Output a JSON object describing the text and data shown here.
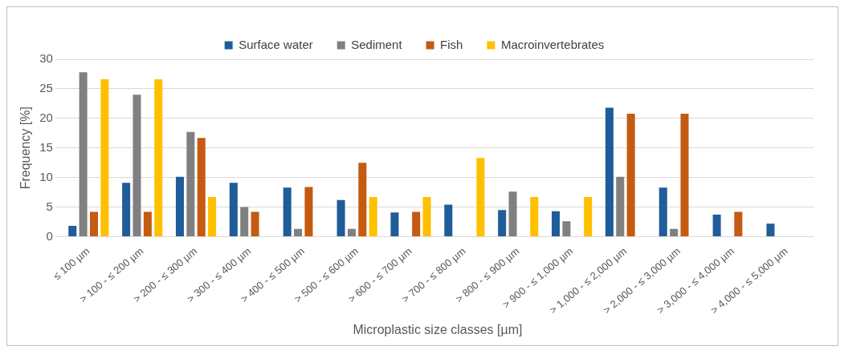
{
  "chart_data": {
    "type": "bar",
    "xlabel": "Microplastic size classes [µm]",
    "ylabel": "Frequency [%]",
    "categories": [
      "≤ 100 µm",
      "> 100 - ≤ 200 µm",
      "> 200 - ≤ 300 µm",
      "> 300 - ≤ 400 µm",
      "> 400 - ≤ 500 µm",
      "> 500 - ≤ 600 µm",
      "> 600 - ≤ 700 µm",
      "> 700 - ≤ 800 µm",
      "> 800 - ≤ 900 µm",
      "> 900 - ≤ 1,000 µm",
      "> 1,000 - ≤ 2,000 µm",
      "> 2,000 - ≤ 3,000 µm",
      "> 3,000 - ≤ 4,000 µm",
      "> 4,000 - ≤ 5,000 µm"
    ],
    "series": [
      {
        "name": "Surface water",
        "color": "#1f5c99",
        "values": [
          1.8,
          9.1,
          10.1,
          9.1,
          8.3,
          6.2,
          4.1,
          5.4,
          4.5,
          4.3,
          21.8,
          8.3,
          3.7,
          2.2
        ]
      },
      {
        "name": "Sediment",
        "color": "#808080",
        "values": [
          27.8,
          24,
          17.7,
          5,
          1.3,
          1.3,
          0,
          0,
          7.6,
          2.6,
          10.1,
          1.3,
          0,
          0
        ]
      },
      {
        "name": "Fish",
        "color": "#c55a11",
        "values": [
          4.2,
          4.2,
          16.7,
          4.2,
          8.4,
          12.5,
          4.2,
          0,
          0,
          0,
          20.8,
          20.8,
          4.2,
          0
        ]
      },
      {
        "name": "Macroinvertebrates",
        "color": "#ffc000",
        "values": [
          26.6,
          26.6,
          6.7,
          0,
          0,
          6.7,
          6.7,
          13.3,
          6.7,
          6.7,
          0,
          0,
          0,
          0
        ]
      }
    ],
    "ylim": [
      0,
      30
    ],
    "yticks": [
      0,
      5,
      10,
      15,
      20,
      25,
      30
    ],
    "grid": "y",
    "legend": "top"
  }
}
